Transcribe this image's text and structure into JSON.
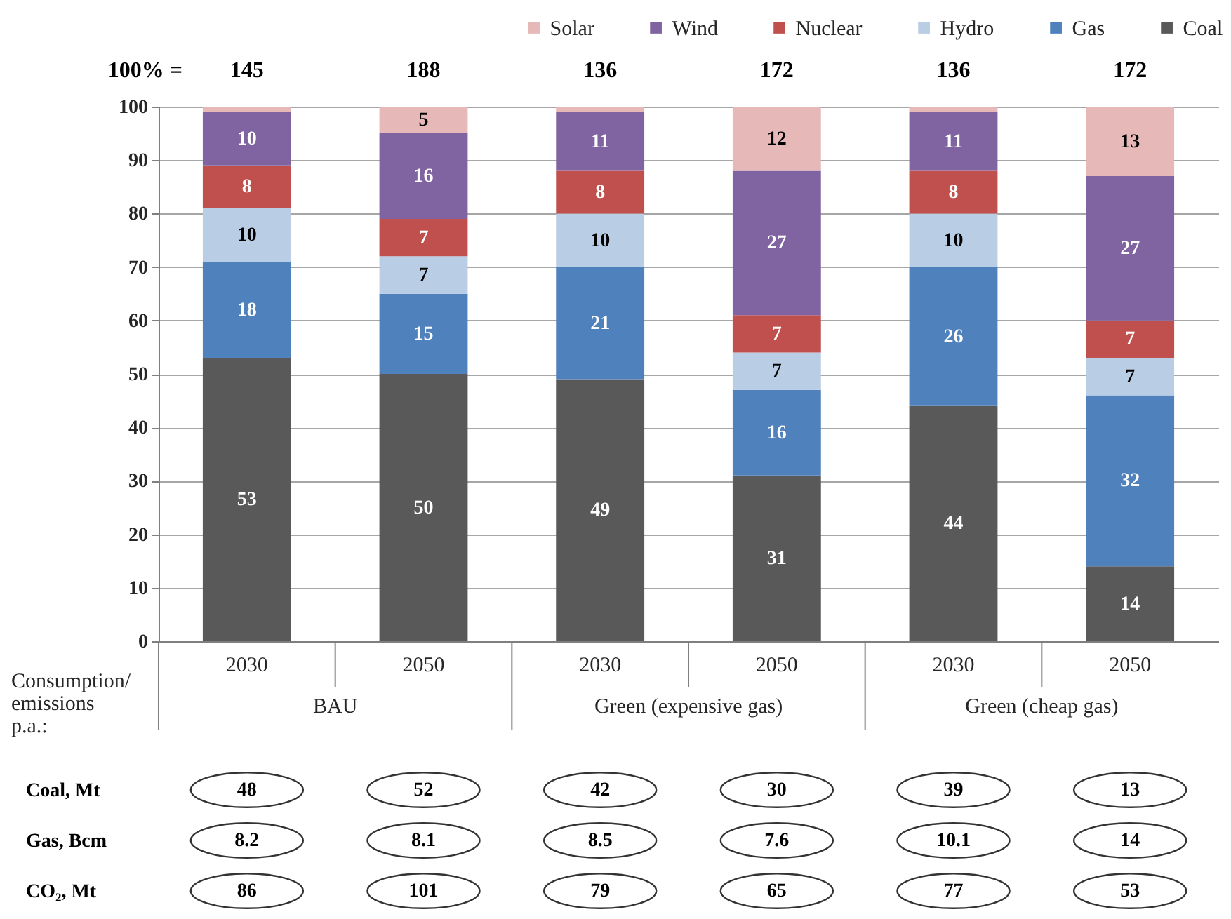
{
  "chart_data": [
    {
      "type": "bar",
      "stacked": true,
      "categories": [
        "2030",
        "2050",
        "2030",
        "2050",
        "2030",
        "2050"
      ],
      "series": [
        {
          "name": "Coal",
          "color": "#595959",
          "values": [
            53,
            50,
            49,
            31,
            44,
            14
          ],
          "value_labels": [
            "53",
            "50",
            "49",
            "31",
            "44",
            "14"
          ]
        },
        {
          "name": "Gas",
          "color": "#4f81bd",
          "values": [
            18,
            15,
            21,
            16,
            26,
            32
          ],
          "value_labels": [
            "18",
            "15",
            "21",
            "16",
            "26",
            "32"
          ]
        },
        {
          "name": "Hydro",
          "color": "#b9cde5",
          "values": [
            10,
            7,
            10,
            7,
            10,
            7
          ],
          "value_labels": [
            "10",
            "7",
            "10",
            "7",
            "10",
            "7"
          ]
        },
        {
          "name": "Nuclear",
          "color": "#c0504d",
          "values": [
            8,
            7,
            8,
            7,
            8,
            7
          ],
          "value_labels": [
            "8",
            "7",
            "8",
            "7",
            "8",
            "7"
          ]
        },
        {
          "name": "Wind",
          "color": "#8064a2",
          "values": [
            10,
            16,
            11,
            27,
            11,
            27
          ],
          "value_labels": [
            "10",
            "16",
            "11",
            "27",
            "11",
            "27"
          ]
        },
        {
          "name": "Solar",
          "color": "#e6b9b8",
          "values": [
            1,
            5,
            1,
            12,
            1,
            13
          ],
          "value_labels": [
            null,
            "5",
            null,
            "12",
            null,
            "13"
          ]
        }
      ],
      "ylim": [
        0,
        100
      ],
      "yticks": [
        0,
        10,
        20,
        30,
        40,
        50,
        60,
        70,
        80,
        90,
        100
      ],
      "grid": "y",
      "legend": "top right",
      "annotations": [
        "100% =",
        "145",
        "188",
        "136",
        "172",
        "136",
        "172",
        "BAU",
        "Green (expensive gas)",
        "Green (cheap gas)"
      ]
    },
    {
      "type": "heatmap",
      "title": "Consumption/ emissions p.a.:",
      "categories": [
        "2030",
        "2050",
        "2030",
        "2050",
        "2030",
        "2050"
      ],
      "y_categories": [
        "Coal, Mt",
        "Gas, Bcm",
        "CO₂, Mt"
      ],
      "cells": [
        [
          48,
          52,
          42,
          30,
          39,
          13
        ],
        [
          8.2,
          8.1,
          8.5,
          7.6,
          10.1,
          14
        ],
        [
          86,
          101,
          79,
          65,
          77,
          53
        ]
      ],
      "data_labels": true,
      "tick_labels": "y"
    }
  ]
}
